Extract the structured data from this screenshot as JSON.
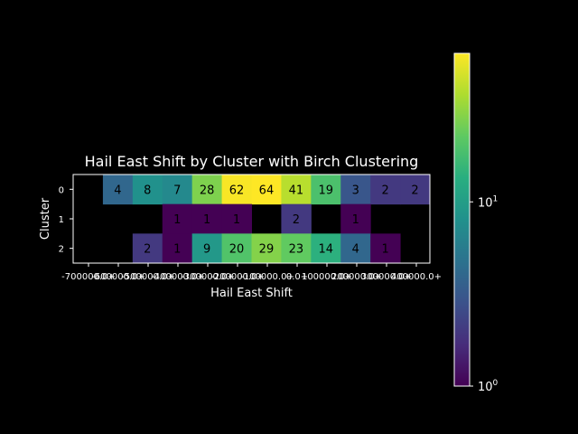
{
  "chart_data": {
    "type": "heatmap",
    "title": "Hail East Shift by Cluster with Birch Clustering",
    "xlabel": "Hail East Shift",
    "ylabel": "Cluster",
    "x_tick_labels": [
      "-700000.0+",
      "-600000.0+",
      "-500000.0+",
      "-400000.0+",
      "-300000.0+",
      "-200000.0+",
      "-100000.0+",
      "0.0+",
      "100000.0+",
      "200000.0+",
      "300000.0+",
      "400000.0+"
    ],
    "y_tick_labels": [
      "0",
      "1",
      "2"
    ],
    "columns": 12,
    "rows": [
      [
        null,
        4,
        8,
        7,
        28,
        62,
        64,
        41,
        19,
        3,
        2,
        2
      ],
      [
        null,
        null,
        null,
        1,
        1,
        1,
        null,
        2,
        null,
        1,
        null,
        null
      ],
      [
        null,
        null,
        2,
        1,
        9,
        20,
        29,
        23,
        14,
        4,
        1,
        null
      ]
    ],
    "color_scale": "log",
    "colormap": "viridis",
    "colorbar_range": [
      1,
      64
    ],
    "colorbar_ticks": [
      {
        "value": 10,
        "label": "10^1",
        "base": "10",
        "exp": "1"
      },
      {
        "value": 1,
        "label": "10^0",
        "base": "10",
        "exp": "0"
      }
    ]
  }
}
